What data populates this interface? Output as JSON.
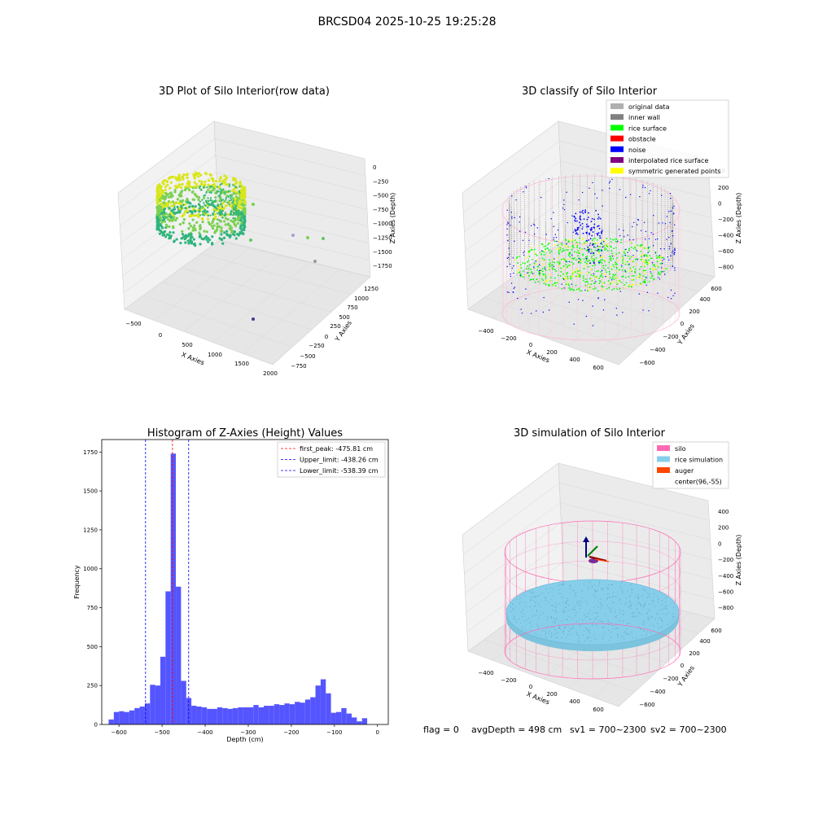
{
  "suptitle": "BRCSD04 2025-10-25 19:25:28",
  "footer": {
    "flag": "flag = 0",
    "avg_depth": "avgDepth = 498 cm",
    "sv1": "sv1 = 700~2300",
    "sv2": "sv2 = 700~2300"
  },
  "colors": {
    "hist_bar": "#5555ff",
    "first_peak": "#ff0000",
    "limits": "#0000ff",
    "silo": "#ff69b4",
    "rice_simulation": "#87ceeb",
    "auger": "#ff4500",
    "original_data": "#b0b0b0",
    "inner_wall": "#808080",
    "rice_surface": "#00ff00",
    "obstacle": "#ff0000",
    "noise": "#0000ff",
    "interpolated_rice_surface": "#800080",
    "symmetric_generated_points": "#ffff00"
  },
  "chart_data": [
    {
      "type": "scatter",
      "title": "3D Plot of Silo Interior(row data)",
      "xlabel": "X Axies",
      "ylabel": "Y Axies",
      "zlabel": "Z Axies (Depth)",
      "x_ticks": [
        "−500",
        "0",
        "500",
        "1000",
        "1500",
        "2000"
      ],
      "y_ticks": [
        "−750",
        "−500",
        "−250",
        "0",
        "250",
        "500",
        "750",
        "1000",
        "1250"
      ],
      "z_ticks": [
        "0",
        "−250",
        "−500",
        "−750",
        "−1000",
        "−1250",
        "−1500",
        "−1750"
      ]
    },
    {
      "type": "scatter",
      "title": "3D classify of Silo Interior",
      "xlabel": "X Axies",
      "ylabel": "Y Axies",
      "zlabel": "Z Axies (Depth)",
      "x_ticks": [
        "−400",
        "−200",
        "0",
        "200",
        "400",
        "600"
      ],
      "y_ticks": [
        "−600",
        "−400",
        "−200",
        "0",
        "200",
        "400",
        "600"
      ],
      "z_ticks": [
        "200",
        "0",
        "−200",
        "−400",
        "−600",
        "−800"
      ],
      "z_ticks_partial": [
        "00"
      ],
      "legend": [
        "original data",
        "inner wall",
        "rice surface",
        "obstacle",
        "noise",
        "interpolated rice surface",
        "symmetric generated points"
      ]
    },
    {
      "type": "bar",
      "title": "Histogram of Z-Axies (Height) Values",
      "xlabel": "Depth (cm)",
      "ylabel": "Frequency",
      "xlim": [
        -640,
        25
      ],
      "ylim": [
        0,
        1830
      ],
      "bin_width": 12,
      "bin_edges_start": -624,
      "values": [
        32,
        80,
        85,
        80,
        90,
        105,
        115,
        135,
        255,
        250,
        435,
        855,
        1740,
        885,
        280,
        170,
        120,
        115,
        110,
        100,
        100,
        110,
        105,
        100,
        105,
        110,
        110,
        110,
        125,
        110,
        120,
        120,
        130,
        125,
        135,
        130,
        145,
        140,
        160,
        175,
        250,
        290,
        200,
        75,
        80,
        105,
        70,
        45,
        20,
        40
      ],
      "x_ticks": [
        -600,
        -500,
        -400,
        -300,
        -200,
        -100,
        0
      ],
      "x_tick_labels": [
        "−600",
        "−500",
        "−400",
        "−300",
        "−200",
        "−100",
        "0"
      ],
      "y_ticks": [
        0,
        250,
        500,
        750,
        1000,
        1250,
        1500,
        1750
      ],
      "y_tick_labels": [
        "0",
        "250",
        "500",
        "750",
        "1000",
        "1250",
        "1500",
        "1750"
      ],
      "vlines": [
        {
          "label": "first_peak: -475.81 cm",
          "x": -475.81,
          "color": "#ff0000"
        },
        {
          "label": "Upper_limit: -438.26 cm",
          "x": -438.26,
          "color": "#0000ff"
        },
        {
          "label": "Lower_limit: -538.39 cm",
          "x": -538.39,
          "color": "#0000ff"
        }
      ],
      "legend_position": "top-right"
    },
    {
      "type": "scatter",
      "title": "3D simulation of Silo Interior",
      "xlabel": "X Axies",
      "ylabel": "Y Axies",
      "zlabel": "Z Axies (Depth)",
      "x_ticks": [
        "−400",
        "−200",
        "0",
        "200",
        "400",
        "600"
      ],
      "y_ticks": [
        "−600",
        "−400",
        "−200",
        "0",
        "200",
        "400",
        "600"
      ],
      "z_ticks": [
        "400",
        "200",
        "0",
        "−200",
        "−400",
        "−600",
        "−800"
      ],
      "legend": [
        "silo",
        "rice simulation",
        "auger",
        "center(96,-55)"
      ]
    }
  ]
}
